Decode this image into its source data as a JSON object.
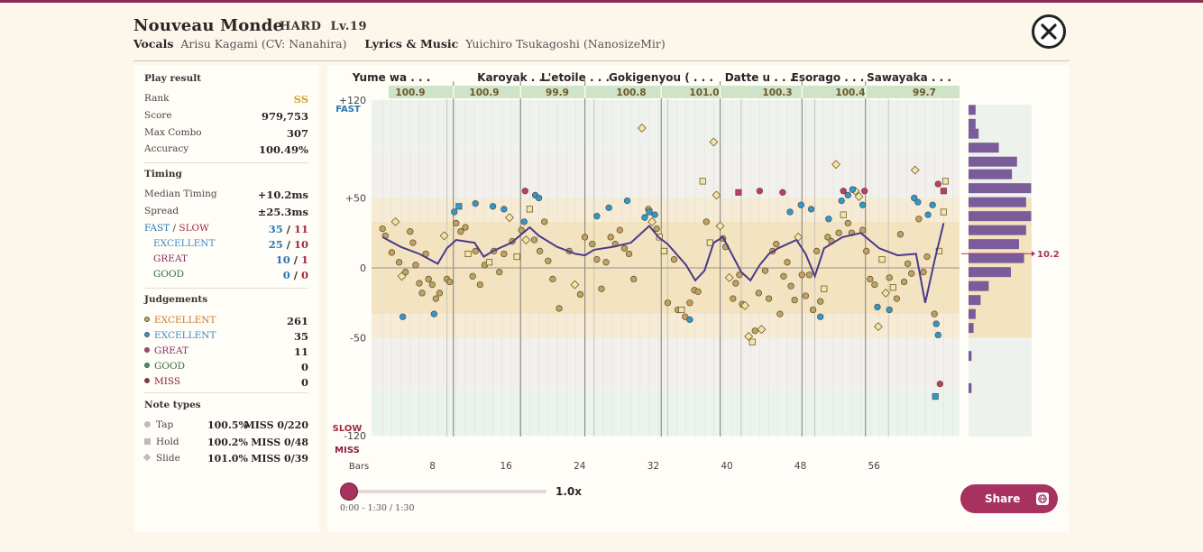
{
  "header": {
    "title": "Nouveau Monde",
    "difficulty": "HARD",
    "level": "Lv.19",
    "vocals_label": "Vocals",
    "vocals": "Arisu Kagami (CV: Nanahira)",
    "lyrics_label": "Lyrics & Music",
    "lyrics": "Yuichiro Tsukagoshi (NanosizeMir)"
  },
  "play_result": {
    "heading": "Play result",
    "rows": [
      {
        "label": "Rank",
        "value": "SS"
      },
      {
        "label": "Score",
        "value": "979,753"
      },
      {
        "label": "Max Combo",
        "value": "307"
      },
      {
        "label": "Accuracy",
        "value": "100.49%"
      }
    ]
  },
  "timing": {
    "heading": "Timing",
    "median_label": "Median Timing",
    "median": "+10.2ms",
    "spread_label": "Spread",
    "spread": "±25.3ms",
    "fastslow_label_fast": "FAST",
    "fastslow_sep": "/",
    "fastslow_label_slow": "SLOW",
    "fast_count": "35",
    "slow_count": "11",
    "excellent_label": "EXCELLENT",
    "excellent_fast": "25",
    "excellent_slow": "10",
    "great_label": "GREAT",
    "great_fast": "10",
    "great_slow": "1",
    "good_label": "GOOD",
    "good_fast": "0",
    "good_slow": "0"
  },
  "judgements": {
    "heading": "Judgements",
    "rows": [
      {
        "label": "EXCELLENT",
        "value": "261",
        "color": "#c9a85a",
        "label_color": "#c97a2a"
      },
      {
        "label": "EXCELLENT",
        "value": "35",
        "color": "#2a9ad6",
        "label_color": "#3c8cc8"
      },
      {
        "label": "GREAT",
        "value": "11",
        "color": "#c33a6a",
        "label_color": "#8a3060"
      },
      {
        "label": "GOOD",
        "value": "0",
        "color": "#3a9a6a",
        "label_color": "#3a6a4a"
      },
      {
        "label": "MISS",
        "value": "0",
        "color": "#b02040",
        "label_color": "#8a2040"
      }
    ]
  },
  "note_types": {
    "heading": "Note types",
    "rows": [
      {
        "label": "Tap",
        "pct": "100.5%",
        "miss": "MISS 0/220"
      },
      {
        "label": "Hold",
        "pct": "100.2%",
        "miss": "MISS 0/48"
      },
      {
        "label": "Slide",
        "pct": "101.0%",
        "miss": "MISS 0/39"
      }
    ]
  },
  "chart": {
    "sections": [
      {
        "name": "Yume wa . . .",
        "value": "100.9"
      },
      {
        "name": "Karoyak . . .",
        "value": "100.9"
      },
      {
        "name": "L'etoile . . .",
        "value": "99.9"
      },
      {
        "name": "Gokigenyou ( . . .",
        "value": "100.8"
      },
      {
        "name": "",
        "value": "101.0"
      },
      {
        "name": "Datte u . . .",
        "value": "100.3"
      },
      {
        "name": "Esorago . . .",
        "value": "100.4"
      },
      {
        "name": "Sawayaka . . .",
        "value": "99.7"
      }
    ],
    "y_ticks": [
      "+120",
      "+50",
      "0",
      "-50",
      "-120"
    ],
    "fast_label": "FAST",
    "slow_label": "SLOW",
    "miss_label": "MISS",
    "bars_label": "Bars",
    "x_ticks": [
      "8",
      "16",
      "24",
      "32",
      "40",
      "48",
      "56"
    ],
    "median_marker": "10.2"
  },
  "chart_data": {
    "type": "scatter",
    "xlabel": "Bars",
    "ylim": [
      -120,
      120
    ],
    "x_ticks": [
      8,
      16,
      24,
      32,
      40,
      48,
      56
    ],
    "y_ticks": [
      120,
      50,
      0,
      -50,
      -120
    ],
    "median": 10.2,
    "judgement_colors": {
      "excellent_gold": "#c9a85a",
      "excellent_blue": "#2a9ad6",
      "great": "#c33a6a"
    },
    "section_values": [
      100.9,
      100.9,
      99.9,
      100.8,
      101.0,
      100.3,
      100.4,
      99.7
    ],
    "trend": [
      [
        1,
        22
      ],
      [
        3,
        15
      ],
      [
        5,
        10
      ],
      [
        7,
        3
      ],
      [
        8,
        14
      ],
      [
        9,
        20
      ],
      [
        11,
        18
      ],
      [
        12,
        8
      ],
      [
        13,
        12
      ],
      [
        15,
        18
      ],
      [
        17,
        29
      ],
      [
        18,
        23
      ],
      [
        20,
        15
      ],
      [
        22,
        10
      ],
      [
        23,
        9
      ],
      [
        24,
        13
      ],
      [
        26,
        15
      ],
      [
        28,
        18
      ],
      [
        30,
        30
      ],
      [
        31,
        22
      ],
      [
        32,
        17
      ],
      [
        34,
        2
      ],
      [
        35,
        -9
      ],
      [
        36,
        -2
      ],
      [
        37,
        18
      ],
      [
        38,
        22
      ],
      [
        40,
        -3
      ],
      [
        41,
        -9
      ],
      [
        42,
        2
      ],
      [
        43,
        10
      ],
      [
        44,
        14
      ],
      [
        46,
        20
      ],
      [
        47,
        10
      ],
      [
        48,
        -6
      ],
      [
        49,
        14
      ],
      [
        51,
        22
      ],
      [
        53,
        25
      ],
      [
        55,
        14
      ],
      [
        57,
        9
      ],
      [
        59,
        10
      ],
      [
        60,
        -25
      ],
      [
        61,
        5
      ],
      [
        62,
        32
      ]
    ],
    "points": [
      [
        1,
        28,
        "g",
        "c"
      ],
      [
        1.3,
        23,
        "g",
        "c"
      ],
      [
        2,
        11,
        "g",
        "c"
      ],
      [
        2.4,
        33,
        "g",
        "d"
      ],
      [
        2.8,
        4,
        "g",
        "c"
      ],
      [
        3.1,
        -6,
        "g",
        "d"
      ],
      [
        3.5,
        -3,
        "g",
        "c"
      ],
      [
        4,
        26,
        "g",
        "c"
      ],
      [
        4.3,
        18,
        "g",
        "c"
      ],
      [
        4.6,
        2,
        "g",
        "c"
      ],
      [
        5,
        -11,
        "g",
        "c"
      ],
      [
        5.3,
        -18,
        "g",
        "c"
      ],
      [
        5.7,
        10,
        "g",
        "c"
      ],
      [
        6,
        -8,
        "g",
        "c"
      ],
      [
        6.4,
        -12,
        "g",
        "c"
      ],
      [
        6.8,
        -22,
        "g",
        "c"
      ],
      [
        7.2,
        -18,
        "g",
        "c"
      ],
      [
        7.7,
        23,
        "g",
        "d"
      ],
      [
        8,
        -8,
        "g",
        "c"
      ],
      [
        8.3,
        -10,
        "g",
        "c"
      ],
      [
        9,
        32,
        "g",
        "c"
      ],
      [
        9.5,
        26,
        "g",
        "c"
      ],
      [
        10,
        29,
        "g",
        "c"
      ],
      [
        10.3,
        10,
        "g",
        "s"
      ],
      [
        10.8,
        -6,
        "g",
        "c"
      ],
      [
        11.1,
        12,
        "g",
        "c"
      ],
      [
        11.6,
        -12,
        "g",
        "c"
      ],
      [
        12.1,
        2,
        "g",
        "c"
      ],
      [
        12.6,
        4,
        "g",
        "s"
      ],
      [
        13.1,
        12,
        "g",
        "c"
      ],
      [
        13.7,
        -3,
        "g",
        "c"
      ],
      [
        14.2,
        10,
        "g",
        "c"
      ],
      [
        14.8,
        36,
        "g",
        "d"
      ],
      [
        15.1,
        19,
        "g",
        "c"
      ],
      [
        15.6,
        8,
        "g",
        "s"
      ],
      [
        16.1,
        27,
        "g",
        "c"
      ],
      [
        16.6,
        20,
        "g",
        "d"
      ],
      [
        17,
        42,
        "g",
        "s"
      ],
      [
        17.5,
        20,
        "g",
        "c"
      ],
      [
        18.1,
        12,
        "g",
        "c"
      ],
      [
        18.6,
        33,
        "g",
        "c"
      ],
      [
        19,
        5,
        "g",
        "c"
      ],
      [
        19.5,
        -8,
        "g",
        "c"
      ],
      [
        20.2,
        -29,
        "g",
        "c"
      ],
      [
        21.3,
        12,
        "g",
        "c"
      ],
      [
        21.9,
        -12,
        "g",
        "d"
      ],
      [
        22.5,
        -19,
        "g",
        "c"
      ],
      [
        23,
        22,
        "g",
        "c"
      ],
      [
        23.8,
        17,
        "g",
        "c"
      ],
      [
        24.3,
        6,
        "g",
        "c"
      ],
      [
        24.8,
        -15,
        "g",
        "c"
      ],
      [
        25.3,
        4,
        "g",
        "c"
      ],
      [
        25.8,
        22,
        "g",
        "c"
      ],
      [
        26.3,
        17,
        "g",
        "c"
      ],
      [
        26.8,
        27,
        "g",
        "c"
      ],
      [
        27.3,
        14,
        "g",
        "c"
      ],
      [
        27.8,
        10,
        "g",
        "c"
      ],
      [
        28.3,
        -8,
        "g",
        "c"
      ],
      [
        29.2,
        100,
        "g",
        "d"
      ],
      [
        29.9,
        42,
        "g",
        "c"
      ],
      [
        30.3,
        33,
        "g",
        "d"
      ],
      [
        30.8,
        28,
        "g",
        "c"
      ],
      [
        31.1,
        22,
        "g",
        "s"
      ],
      [
        31.6,
        12,
        "g",
        "s"
      ],
      [
        32,
        -25,
        "g",
        "c"
      ],
      [
        32.7,
        6,
        "g",
        "c"
      ],
      [
        33.1,
        -30,
        "g",
        "c"
      ],
      [
        33.5,
        -30,
        "g",
        "s"
      ],
      [
        33.9,
        -35,
        "g",
        "c"
      ],
      [
        34.4,
        -25,
        "g",
        "c"
      ],
      [
        34.9,
        -16,
        "g",
        "c"
      ],
      [
        35.3,
        -17,
        "g",
        "c"
      ],
      [
        35.8,
        62,
        "g",
        "s"
      ],
      [
        36.2,
        33,
        "g",
        "c"
      ],
      [
        36.6,
        18,
        "g",
        "s"
      ],
      [
        37,
        90,
        "g",
        "d"
      ],
      [
        37.3,
        52,
        "g",
        "d"
      ],
      [
        37.7,
        30,
        "g",
        "d"
      ],
      [
        38,
        21,
        "g",
        "c"
      ],
      [
        38.3,
        15,
        "g",
        "c"
      ],
      [
        38.7,
        -7,
        "g",
        "d"
      ],
      [
        39.1,
        -22,
        "g",
        "c"
      ],
      [
        39.4,
        -11,
        "g",
        "c"
      ],
      [
        39.8,
        -5,
        "g",
        "c"
      ],
      [
        40.1,
        -26,
        "g",
        "c"
      ],
      [
        40.4,
        -27,
        "g",
        "d"
      ],
      [
        40.8,
        -49,
        "g",
        "d"
      ],
      [
        41.2,
        -53,
        "g",
        "s"
      ],
      [
        41.5,
        -45,
        "g",
        "c"
      ],
      [
        41.9,
        -18,
        "g",
        "c"
      ],
      [
        42.2,
        -44,
        "g",
        "d"
      ],
      [
        42.6,
        -2,
        "g",
        "c"
      ],
      [
        43,
        -22,
        "g",
        "c"
      ],
      [
        43.4,
        12,
        "g",
        "c"
      ],
      [
        43.8,
        17,
        "g",
        "c"
      ],
      [
        44.2,
        -33,
        "g",
        "c"
      ],
      [
        44.6,
        -6,
        "g",
        "c"
      ],
      [
        45,
        4,
        "g",
        "c"
      ],
      [
        45.4,
        -13,
        "g",
        "c"
      ],
      [
        45.8,
        -23,
        "g",
        "c"
      ],
      [
        46.2,
        22,
        "g",
        "d"
      ],
      [
        46.6,
        -5,
        "g",
        "c"
      ],
      [
        47,
        -20,
        "g",
        "c"
      ],
      [
        47.4,
        -5,
        "g",
        "c"
      ],
      [
        47.8,
        -30,
        "g",
        "c"
      ],
      [
        48.2,
        12,
        "g",
        "c"
      ],
      [
        48.6,
        -24,
        "g",
        "c"
      ],
      [
        49,
        -15,
        "g",
        "s"
      ],
      [
        49.4,
        22,
        "g",
        "c"
      ],
      [
        49.8,
        19,
        "g",
        "c"
      ],
      [
        50.3,
        74,
        "g",
        "d"
      ],
      [
        50.6,
        25,
        "g",
        "c"
      ],
      [
        51.1,
        38,
        "g",
        "s"
      ],
      [
        51.6,
        32,
        "g",
        "c"
      ],
      [
        52,
        25,
        "g",
        "c"
      ],
      [
        52.4,
        55,
        "g",
        "d"
      ],
      [
        52.8,
        51,
        "g",
        "d"
      ],
      [
        53.2,
        27,
        "g",
        "c"
      ],
      [
        53.6,
        12,
        "g",
        "c"
      ],
      [
        54,
        -8,
        "g",
        "c"
      ],
      [
        54.5,
        -12,
        "g",
        "c"
      ],
      [
        54.9,
        -42,
        "g",
        "d"
      ],
      [
        55.3,
        6,
        "g",
        "s"
      ],
      [
        55.7,
        -18,
        "g",
        "d"
      ],
      [
        56.1,
        -7,
        "g",
        "c"
      ],
      [
        56.5,
        -14,
        "g",
        "s"
      ],
      [
        56.9,
        -22,
        "g",
        "c"
      ],
      [
        57.3,
        24,
        "g",
        "c"
      ],
      [
        57.7,
        -10,
        "g",
        "c"
      ],
      [
        58.1,
        3,
        "g",
        "c"
      ],
      [
        58.5,
        -4,
        "g",
        "c"
      ],
      [
        58.9,
        70,
        "g",
        "d"
      ],
      [
        59.3,
        35,
        "g",
        "c"
      ],
      [
        59.8,
        -3,
        "g",
        "c"
      ],
      [
        60.2,
        8,
        "g",
        "c"
      ],
      [
        61,
        -33,
        "g",
        "c"
      ],
      [
        61.5,
        12,
        "g",
        "s"
      ],
      [
        62,
        40,
        "g",
        "s"
      ],
      [
        62.2,
        62,
        "g",
        "s"
      ],
      [
        3.2,
        -35,
        "b",
        "c"
      ],
      [
        6.6,
        -33,
        "b",
        "c"
      ],
      [
        8.8,
        40,
        "b",
        "c"
      ],
      [
        9.3,
        44,
        "b",
        "s"
      ],
      [
        11.1,
        46,
        "b",
        "c"
      ],
      [
        13,
        44,
        "b",
        "c"
      ],
      [
        14.2,
        42,
        "b",
        "c"
      ],
      [
        16.4,
        33,
        "b",
        "c"
      ],
      [
        17.6,
        52,
        "b",
        "c"
      ],
      [
        18,
        50,
        "b",
        "c"
      ],
      [
        24.3,
        37,
        "b",
        "c"
      ],
      [
        25.6,
        43,
        "b",
        "c"
      ],
      [
        27.6,
        48,
        "b",
        "c"
      ],
      [
        29.5,
        36,
        "b",
        "c"
      ],
      [
        30,
        40,
        "b",
        "s"
      ],
      [
        30.6,
        38,
        "b",
        "c"
      ],
      [
        34.4,
        -37,
        "b",
        "c"
      ],
      [
        45.3,
        40,
        "b",
        "c"
      ],
      [
        46.5,
        45,
        "b",
        "c"
      ],
      [
        47.6,
        42,
        "b",
        "c"
      ],
      [
        48.6,
        -35,
        "b",
        "c"
      ],
      [
        49.5,
        35,
        "b",
        "c"
      ],
      [
        50.9,
        48,
        "b",
        "c"
      ],
      [
        51.6,
        52,
        "b",
        "c"
      ],
      [
        52.1,
        56,
        "b",
        "c"
      ],
      [
        53.2,
        45,
        "b",
        "c"
      ],
      [
        54.8,
        -28,
        "b",
        "c"
      ],
      [
        56.1,
        -30,
        "b",
        "c"
      ],
      [
        58.8,
        50,
        "b",
        "c"
      ],
      [
        59.2,
        47,
        "b",
        "c"
      ],
      [
        60.3,
        38,
        "b",
        "c"
      ],
      [
        60.8,
        45,
        "b",
        "c"
      ],
      [
        61.2,
        -40,
        "b",
        "c"
      ],
      [
        61.4,
        -48,
        "b",
        "c"
      ],
      [
        61.1,
        -92,
        "b",
        "s"
      ],
      [
        16.5,
        55,
        "r",
        "c"
      ],
      [
        39.7,
        54,
        "r",
        "s"
      ],
      [
        42,
        55,
        "r",
        "c"
      ],
      [
        44.5,
        54,
        "r",
        "c"
      ],
      [
        51.1,
        55,
        "r",
        "c"
      ],
      [
        53.4,
        55,
        "r",
        "c"
      ],
      [
        61.4,
        60,
        "r",
        "c"
      ],
      [
        62,
        55,
        "r",
        "s"
      ],
      [
        61.6,
        -83,
        "r",
        "c"
      ]
    ],
    "histogram": [
      [
        113,
        0.07
      ],
      [
        103,
        0.07
      ],
      [
        96,
        0.1
      ],
      [
        86,
        0.3
      ],
      [
        76,
        0.48
      ],
      [
        67,
        0.43
      ],
      [
        57,
        0.62
      ],
      [
        47,
        0.57
      ],
      [
        37,
        0.62
      ],
      [
        27,
        0.57
      ],
      [
        17,
        0.5
      ],
      [
        7,
        0.55
      ],
      [
        -3,
        0.42
      ],
      [
        -13,
        0.2
      ],
      [
        -23,
        0.12
      ],
      [
        -33,
        0.07
      ],
      [
        -43,
        0.05
      ],
      [
        -63,
        0.03
      ],
      [
        -86,
        0.03
      ]
    ]
  },
  "controls": {
    "speed": "1.0x",
    "time": "0:00 - 1:30 / 1:30",
    "share": "Share"
  }
}
